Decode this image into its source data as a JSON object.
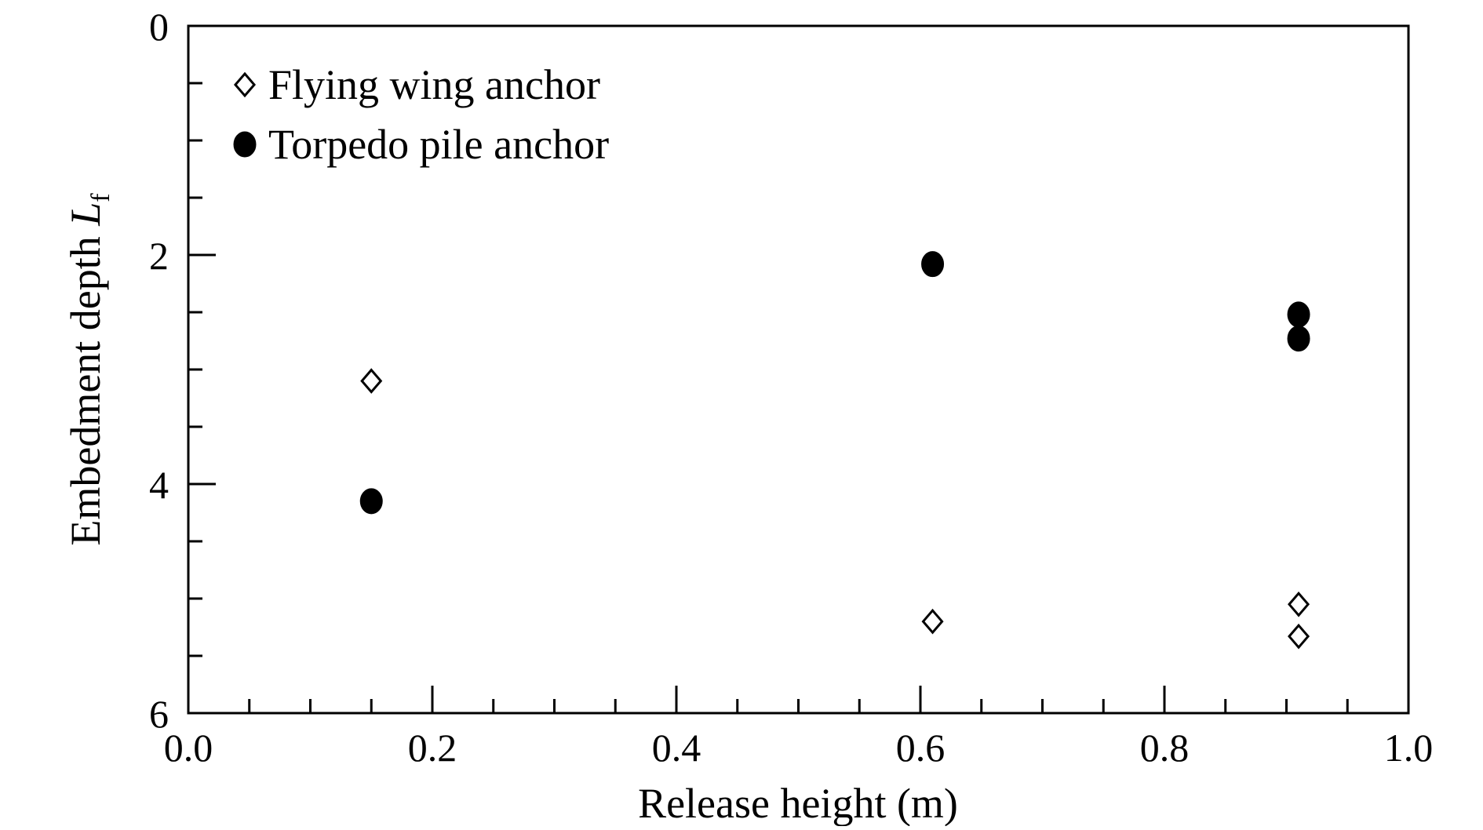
{
  "chart_data": {
    "type": "scatter",
    "title": "",
    "xlabel": "Release height (m)",
    "ylabel": {
      "text": "Embedment depth ",
      "symbol": "L",
      "subscript": "f"
    },
    "xlim": [
      0.0,
      1.0
    ],
    "ylim": [
      0,
      6
    ],
    "y_inverted": true,
    "x_ticks": [
      "0.0",
      "0.2",
      "0.4",
      "0.6",
      "0.8",
      "1.0"
    ],
    "y_ticks": [
      "0",
      "2",
      "4",
      "6"
    ],
    "grid": false,
    "legend_position": "top-left",
    "series": [
      {
        "name": "Flying wing anchor",
        "marker": "open-diamond",
        "color": "#000000",
        "x": [
          0.15,
          0.61,
          0.91,
          0.91
        ],
        "y": [
          3.1,
          5.2,
          5.05,
          5.33
        ]
      },
      {
        "name": "Torpedo pile anchor",
        "marker": "filled-circle",
        "color": "#000000",
        "x": [
          0.15,
          0.61,
          0.91,
          0.91
        ],
        "y": [
          4.15,
          2.08,
          2.52,
          2.73
        ]
      }
    ]
  }
}
